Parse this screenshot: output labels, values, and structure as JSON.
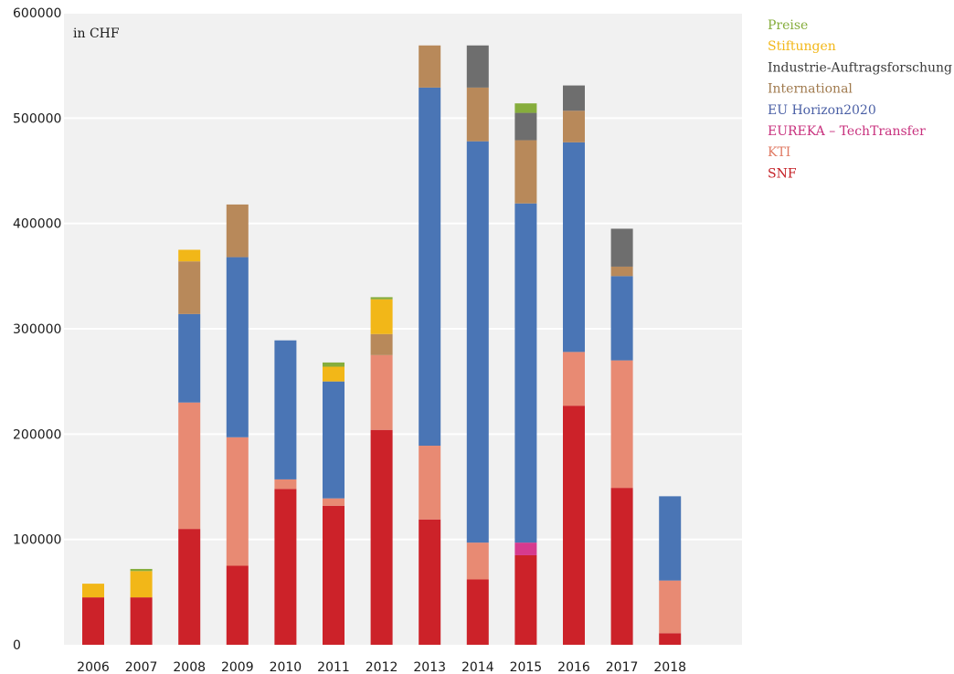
{
  "chart_data": {
    "type": "bar",
    "stacked": true,
    "unit_label": "in CHF",
    "title": "",
    "xlabel": "",
    "ylabel": "",
    "ylim": [
      0,
      600000
    ],
    "yticks": [
      0,
      100000,
      200000,
      300000,
      400000,
      500000,
      600000
    ],
    "ytick_labels": [
      "0",
      "100000",
      "200000",
      "300000",
      "400000",
      "500000",
      "600000"
    ],
    "grid": true,
    "legend_position": "top-right",
    "categories": [
      "2006",
      "2007",
      "2008",
      "2009",
      "2010",
      "2011",
      "2012",
      "2013",
      "2014",
      "2015",
      "2016",
      "2017",
      "2018"
    ],
    "series": [
      {
        "name": "SNF",
        "color": "#cc2229",
        "values": [
          45000,
          45000,
          110000,
          75000,
          148000,
          132000,
          204000,
          119000,
          62000,
          85000,
          227000,
          149000,
          11000
        ]
      },
      {
        "name": "KTI",
        "color": "#e88a73",
        "values": [
          0,
          0,
          120000,
          122000,
          9000,
          7000,
          71000,
          70000,
          35000,
          0,
          51000,
          121000,
          50000
        ]
      },
      {
        "name": "EUREKA – TechTransfer",
        "color": "#d63a8e",
        "values": [
          0,
          0,
          0,
          0,
          0,
          0,
          0,
          0,
          0,
          12000,
          0,
          0,
          0
        ]
      },
      {
        "name": "EU Horizon2020",
        "color": "#4a75b5",
        "values": [
          0,
          0,
          84000,
          171000,
          132000,
          111000,
          0,
          340000,
          381000,
          322000,
          199000,
          80000,
          80000
        ]
      },
      {
        "name": "International",
        "color": "#b8895a",
        "values": [
          0,
          0,
          50000,
          50000,
          0,
          0,
          20000,
          40000,
          51000,
          60000,
          30000,
          9000,
          0
        ]
      },
      {
        "name": "Industrie-Auftragsforschung",
        "color": "#6e6e6e",
        "values": [
          0,
          0,
          0,
          0,
          0,
          0,
          0,
          0,
          40000,
          26000,
          24000,
          36000,
          0
        ]
      },
      {
        "name": "Stiftungen",
        "color": "#f2b718",
        "values": [
          13000,
          25000,
          11000,
          0,
          0,
          14000,
          33000,
          0,
          0,
          0,
          0,
          0,
          0
        ]
      },
      {
        "name": "Preise",
        "color": "#86ad3c",
        "values": [
          0,
          2000,
          0,
          0,
          0,
          4000,
          2000,
          0,
          0,
          9000,
          0,
          0,
          0
        ]
      }
    ],
    "legend_order": [
      "Preise",
      "Stiftungen",
      "Industrie-Auftragsforschung",
      "International",
      "EU Horizon2020",
      "EUREKA – TechTransfer",
      "KTI",
      "SNF"
    ],
    "legend_colors": {
      "Preise": "#86ad3c",
      "Stiftungen": "#f2b718",
      "Industrie-Auftragsforschung": "#3a3a3a",
      "International": "#a07a4e",
      "EU Horizon2020": "#4a5fa5",
      "EUREKA – TechTransfer": "#c8317e",
      "KTI": "#e07a63",
      "SNF": "#c41e24"
    },
    "plot_background": "#f1f1f1",
    "grid_color": "#ffffff"
  }
}
